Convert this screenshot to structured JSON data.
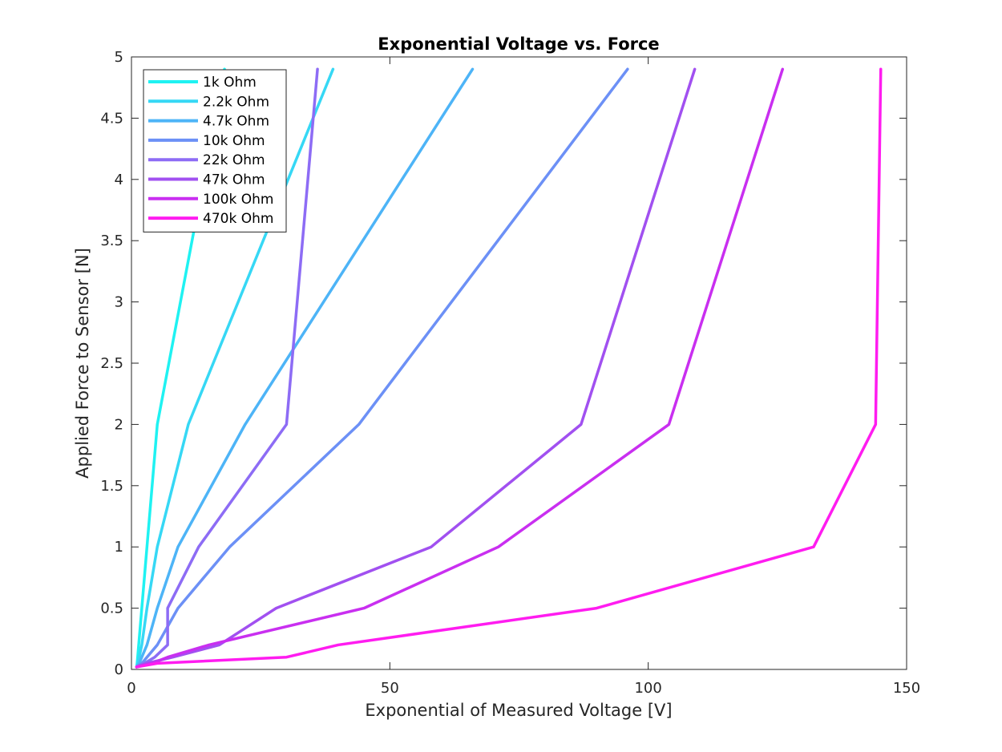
{
  "chart_data": {
    "type": "line",
    "title": "Exponential Voltage vs. Force",
    "xlabel": "Exponential of Measured Voltage [V]",
    "ylabel": "Applied Force to Sensor [N]",
    "xlim": [
      0,
      150
    ],
    "ylim": [
      0,
      5
    ],
    "xticks": [
      0,
      50,
      100,
      150
    ],
    "yticks": [
      0,
      0.5,
      1,
      1.5,
      2,
      2.5,
      3,
      3.5,
      4,
      4.5,
      5
    ],
    "xtick_labels": [
      "0",
      "50",
      "100",
      "150"
    ],
    "ytick_labels": [
      "0",
      "0.5",
      "1",
      "1.5",
      "2",
      "2.5",
      "3",
      "3.5",
      "4",
      "4.5",
      "5"
    ],
    "grid": false,
    "legend_position": "top-left",
    "y": [
      0.02,
      0.05,
      0.1,
      0.2,
      0.5,
      1.0,
      2.0,
      4.9
    ],
    "series": [
      {
        "name": "1k Ohm",
        "color": "#1ff2f2",
        "x": [
          1.0,
          1.1,
          1.2,
          1.4,
          2.0,
          3.0,
          5.0,
          18.0
        ]
      },
      {
        "name": "2.2k Ohm",
        "color": "#36d8f5",
        "x": [
          1.0,
          1.2,
          1.5,
          2.0,
          3.0,
          5.0,
          11.0,
          39.0
        ]
      },
      {
        "name": "4.7k Ohm",
        "color": "#4db4f7",
        "x": [
          1.0,
          1.5,
          2.0,
          3.0,
          5.0,
          9.0,
          22.0,
          66.0
        ]
      },
      {
        "name": "10k Ohm",
        "color": "#6c90f6",
        "x": [
          1.0,
          2.0,
          3.0,
          5.0,
          9.0,
          19.0,
          44.0,
          96.0
        ]
      },
      {
        "name": "22k Ohm",
        "color": "#8d6cf5",
        "x": [
          1.0,
          2.5,
          4.5,
          7.0,
          7.0,
          13.0,
          30.0,
          36.0
        ]
      },
      {
        "name": "47k Ohm",
        "color": "#a150f0",
        "x": [
          1.0,
          3.0,
          8.0,
          17.0,
          28.0,
          58.0,
          87.0,
          109.0
        ]
      },
      {
        "name": "100k Ohm",
        "color": "#c92ff0",
        "x": [
          1.0,
          4.0,
          7.0,
          15.0,
          45.0,
          71.0,
          104.0,
          126.0
        ]
      },
      {
        "name": "470k Ohm",
        "color": "#ff1cf0",
        "x": [
          1.0,
          5.0,
          30.0,
          40.0,
          90.0,
          132.0,
          144.0,
          145.0
        ]
      }
    ]
  }
}
